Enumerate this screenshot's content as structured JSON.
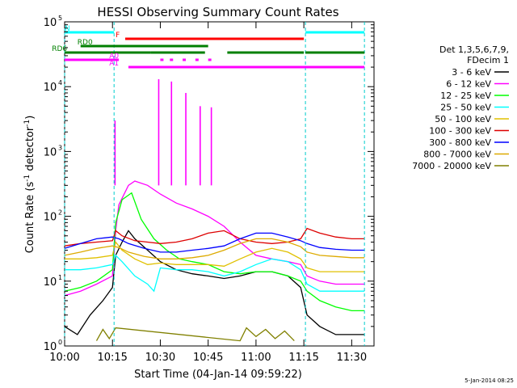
{
  "chart_data": {
    "type": "line",
    "title": "HESSI Observing Summary Count Rates",
    "xlabel": "Start Time (04-Jan-14 09:59:22)",
    "ylabel_main": "Count Rate (s",
    "ylabel_sup1": "-1",
    "ylabel_mid": " detector",
    "ylabel_sup2": "-1",
    "ylabel_end": ")",
    "xlim_minutes": [
      0,
      39.6
    ],
    "ylim": [
      1,
      100000
    ],
    "yscale": "log",
    "x_ticks": [
      {
        "t": 0,
        "label": "10:00"
      },
      {
        "t": 15,
        "label": "10:15"
      },
      {
        "t": 30,
        "label": "10:30"
      },
      {
        "t": 45,
        "label": "10:45"
      },
      {
        "t": 60,
        "label": "11:00"
      },
      {
        "t": 75,
        "label": "11:15"
      },
      {
        "t": 90,
        "label": "11:30"
      }
    ],
    "x_domain_minutes": [
      0,
      97
    ],
    "y_ticks": [
      {
        "v": 1,
        "base": "10",
        "exp": "0"
      },
      {
        "v": 10,
        "base": "10",
        "exp": "1"
      },
      {
        "v": 100,
        "base": "10",
        "exp": "2"
      },
      {
        "v": 1000,
        "base": "10",
        "exp": "3"
      },
      {
        "v": 10000,
        "base": "10",
        "exp": "4"
      },
      {
        "v": 100000,
        "base": "10",
        "exp": "5"
      }
    ],
    "legend": {
      "placement": "right",
      "header1": "Det 1,3,5,6,7,9,",
      "header2": "FDecim 1",
      "entries": [
        {
          "label": "3 - 6 keV",
          "color": "#000000"
        },
        {
          "label": "6 - 12 keV",
          "color": "#ff00ff"
        },
        {
          "label": "12 - 25 keV",
          "color": "#00ff00"
        },
        {
          "label": "25 - 50 keV",
          "color": "#00ffff"
        },
        {
          "label": "50 - 100 keV",
          "color": "#e0c000"
        },
        {
          "label": "100 - 300 keV",
          "color": "#dd0000"
        },
        {
          "label": "300 - 800 keV",
          "color": "#0000ff"
        },
        {
          "label": "800 - 7000 keV",
          "color": "#ddaa00"
        },
        {
          "label": "7000 - 20000 keV",
          "color": "#808000"
        }
      ]
    },
    "flags": [
      {
        "label": "N",
        "color": "#00ffff"
      },
      {
        "label": "F",
        "color": "#ff0000"
      },
      {
        "label": "RD0",
        "color": "#008000"
      },
      {
        "label": "RD6",
        "color": "#008000"
      },
      {
        "label": "A0",
        "color": "#ff00ff"
      },
      {
        "label": "A1",
        "color": "#ff00ff"
      }
    ],
    "series": [
      {
        "name": "3 - 6 keV",
        "color": "#000000",
        "points": [
          [
            0,
            2
          ],
          [
            4,
            1.5
          ],
          [
            8,
            3
          ],
          [
            12,
            5
          ],
          [
            15,
            8
          ],
          [
            16,
            25
          ],
          [
            18,
            40
          ],
          [
            20,
            60
          ],
          [
            22,
            45
          ],
          [
            26,
            30
          ],
          [
            30,
            20
          ],
          [
            35,
            15
          ],
          [
            40,
            13
          ],
          [
            45,
            12
          ],
          [
            50,
            11
          ],
          [
            55,
            12
          ],
          [
            60,
            14
          ],
          [
            65,
            14
          ],
          [
            70,
            12
          ],
          [
            74,
            8
          ],
          [
            76,
            3
          ],
          [
            80,
            2
          ],
          [
            85,
            1.5
          ],
          [
            90,
            1.5
          ],
          [
            94,
            1.5
          ]
        ]
      },
      {
        "name": "6 - 12 keV",
        "color": "#ff00ff",
        "points": [
          [
            0,
            6
          ],
          [
            5,
            7
          ],
          [
            10,
            9
          ],
          [
            15,
            12
          ],
          [
            16,
            60
          ],
          [
            17,
            150
          ],
          [
            20,
            300
          ],
          [
            22,
            350
          ],
          [
            26,
            300
          ],
          [
            30,
            220
          ],
          [
            35,
            160
          ],
          [
            40,
            130
          ],
          [
            45,
            100
          ],
          [
            50,
            70
          ],
          [
            55,
            40
          ],
          [
            60,
            25
          ],
          [
            65,
            22
          ],
          [
            70,
            20
          ],
          [
            74,
            18
          ],
          [
            76,
            12
          ],
          [
            80,
            10
          ],
          [
            85,
            9
          ],
          [
            90,
            9
          ],
          [
            94,
            9
          ]
        ]
      },
      {
        "name": "12 - 25 keV",
        "color": "#00ff00",
        "points": [
          [
            0,
            7
          ],
          [
            5,
            8
          ],
          [
            10,
            10
          ],
          [
            15,
            15
          ],
          [
            16,
            80
          ],
          [
            18,
            180
          ],
          [
            21,
            230
          ],
          [
            24,
            90
          ],
          [
            28,
            45
          ],
          [
            32,
            30
          ],
          [
            36,
            22
          ],
          [
            40,
            20
          ],
          [
            45,
            18
          ],
          [
            50,
            14
          ],
          [
            55,
            13
          ],
          [
            60,
            14
          ],
          [
            65,
            14
          ],
          [
            70,
            12
          ],
          [
            74,
            10
          ],
          [
            76,
            7
          ],
          [
            80,
            5
          ],
          [
            85,
            4
          ],
          [
            90,
            3.5
          ],
          [
            94,
            3.5
          ]
        ]
      },
      {
        "name": "25 - 50 keV",
        "color": "#00ffff",
        "points": [
          [
            0,
            15
          ],
          [
            5,
            15
          ],
          [
            10,
            16
          ],
          [
            15,
            18
          ],
          [
            16,
            25
          ],
          [
            18,
            20
          ],
          [
            22,
            12
          ],
          [
            26,
            9
          ],
          [
            28,
            7
          ],
          [
            30,
            16
          ],
          [
            35,
            15
          ],
          [
            40,
            15
          ],
          [
            45,
            14
          ],
          [
            50,
            12
          ],
          [
            55,
            14
          ],
          [
            60,
            18
          ],
          [
            65,
            22
          ],
          [
            70,
            20
          ],
          [
            74,
            15
          ],
          [
            76,
            9
          ],
          [
            80,
            7
          ],
          [
            85,
            7
          ],
          [
            90,
            7
          ],
          [
            94,
            7
          ]
        ]
      },
      {
        "name": "50 - 100 keV",
        "color": "#e0c000",
        "points": [
          [
            0,
            22
          ],
          [
            5,
            22
          ],
          [
            10,
            23
          ],
          [
            15,
            25
          ],
          [
            16,
            40
          ],
          [
            18,
            30
          ],
          [
            22,
            22
          ],
          [
            26,
            18
          ],
          [
            30,
            19
          ],
          [
            35,
            18
          ],
          [
            40,
            18
          ],
          [
            45,
            18
          ],
          [
            50,
            17
          ],
          [
            55,
            22
          ],
          [
            60,
            28
          ],
          [
            65,
            32
          ],
          [
            70,
            28
          ],
          [
            74,
            22
          ],
          [
            76,
            16
          ],
          [
            80,
            14
          ],
          [
            85,
            14
          ],
          [
            90,
            14
          ],
          [
            94,
            14
          ]
        ]
      },
      {
        "name": "100 - 300 keV",
        "color": "#dd0000",
        "points": [
          [
            0,
            35
          ],
          [
            5,
            38
          ],
          [
            10,
            40
          ],
          [
            15,
            42
          ],
          [
            16,
            60
          ],
          [
            18,
            50
          ],
          [
            22,
            42
          ],
          [
            26,
            40
          ],
          [
            30,
            38
          ],
          [
            35,
            40
          ],
          [
            40,
            45
          ],
          [
            45,
            55
          ],
          [
            50,
            60
          ],
          [
            55,
            45
          ],
          [
            60,
            40
          ],
          [
            65,
            38
          ],
          [
            70,
            40
          ],
          [
            74,
            45
          ],
          [
            76,
            65
          ],
          [
            80,
            55
          ],
          [
            85,
            48
          ],
          [
            90,
            45
          ],
          [
            94,
            45
          ]
        ]
      },
      {
        "name": "300 - 800 keV",
        "color": "#0000ff",
        "points": [
          [
            0,
            32
          ],
          [
            5,
            38
          ],
          [
            10,
            45
          ],
          [
            15,
            48
          ],
          [
            17,
            45
          ],
          [
            20,
            38
          ],
          [
            25,
            32
          ],
          [
            30,
            28
          ],
          [
            35,
            28
          ],
          [
            40,
            30
          ],
          [
            45,
            32
          ],
          [
            50,
            35
          ],
          [
            55,
            45
          ],
          [
            60,
            55
          ],
          [
            65,
            55
          ],
          [
            70,
            48
          ],
          [
            74,
            42
          ],
          [
            76,
            38
          ],
          [
            80,
            33
          ],
          [
            85,
            31
          ],
          [
            90,
            30
          ],
          [
            94,
            30
          ]
        ]
      },
      {
        "name": "800 - 7000 keV",
        "color": "#ddaa00",
        "points": [
          [
            0,
            25
          ],
          [
            5,
            28
          ],
          [
            10,
            32
          ],
          [
            15,
            35
          ],
          [
            17,
            33
          ],
          [
            20,
            28
          ],
          [
            25,
            24
          ],
          [
            30,
            22
          ],
          [
            35,
            22
          ],
          [
            40,
            23
          ],
          [
            45,
            25
          ],
          [
            50,
            30
          ],
          [
            55,
            38
          ],
          [
            60,
            45
          ],
          [
            65,
            45
          ],
          [
            70,
            40
          ],
          [
            74,
            34
          ],
          [
            76,
            28
          ],
          [
            80,
            25
          ],
          [
            85,
            24
          ],
          [
            90,
            23
          ],
          [
            94,
            23
          ]
        ]
      },
      {
        "name": "7000 - 20000 keV",
        "color": "#808000",
        "points": [
          [
            10,
            1.2
          ],
          [
            12,
            1.8
          ],
          [
            14,
            1.3
          ],
          [
            16,
            1.9
          ],
          [
            55,
            1.2
          ],
          [
            57,
            1.9
          ],
          [
            60,
            1.4
          ],
          [
            63,
            1.8
          ],
          [
            66,
            1.3
          ],
          [
            69,
            1.7
          ],
          [
            72,
            1.2
          ]
        ]
      }
    ],
    "spikes_minutes": [
      15.8,
      29.5,
      33.5,
      38.0,
      42.5,
      46.0
    ],
    "spike_peaks": [
      3000,
      13000,
      12000,
      8000,
      5000,
      4800
    ],
    "timestamp": "5-Jan-2014 08:25"
  }
}
